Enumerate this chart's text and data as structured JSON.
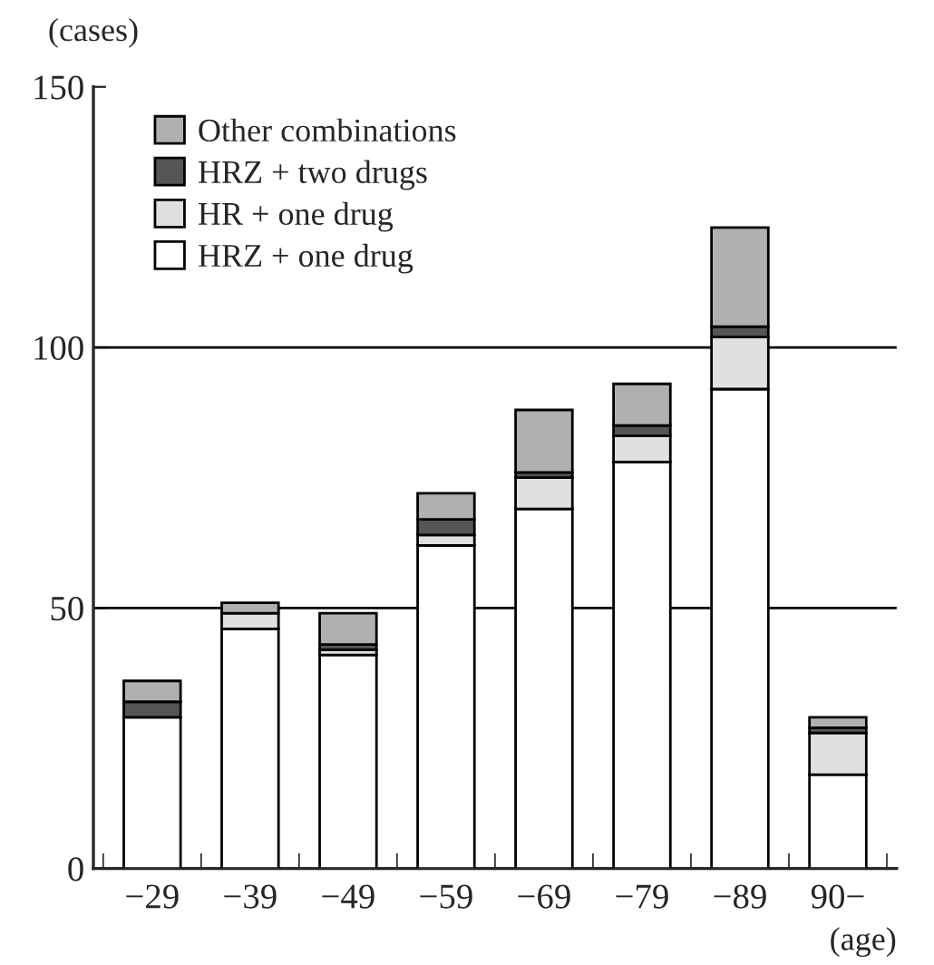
{
  "chart_data": {
    "type": "bar",
    "stacked": true,
    "xlabel": "(age)",
    "ylabel": "(cases)",
    "categories": [
      "−29",
      "−39",
      "−49",
      "−59",
      "−69",
      "−79",
      "−89",
      "90−"
    ],
    "series": [
      {
        "name": "HRZ + one drug",
        "color": "#ffffff",
        "values": [
          29,
          46,
          41,
          62,
          69,
          78,
          92,
          18
        ]
      },
      {
        "name": "HR + one drug",
        "color": "#e0e0e0",
        "values": [
          null,
          3,
          1,
          2,
          6,
          5,
          10,
          8
        ]
      },
      {
        "name": "HRZ + two drugs",
        "color": "#555555",
        "values": [
          3,
          null,
          1,
          3,
          1,
          2,
          2,
          1
        ]
      },
      {
        "name": "Other combinations",
        "color": "#b0b0b0",
        "values": [
          4,
          2,
          6,
          5,
          12,
          8,
          19,
          2
        ]
      }
    ],
    "ylim": [
      0,
      150
    ],
    "yticks": [
      0,
      50,
      100,
      150
    ],
    "grid": "y",
    "legend": "top left"
  }
}
